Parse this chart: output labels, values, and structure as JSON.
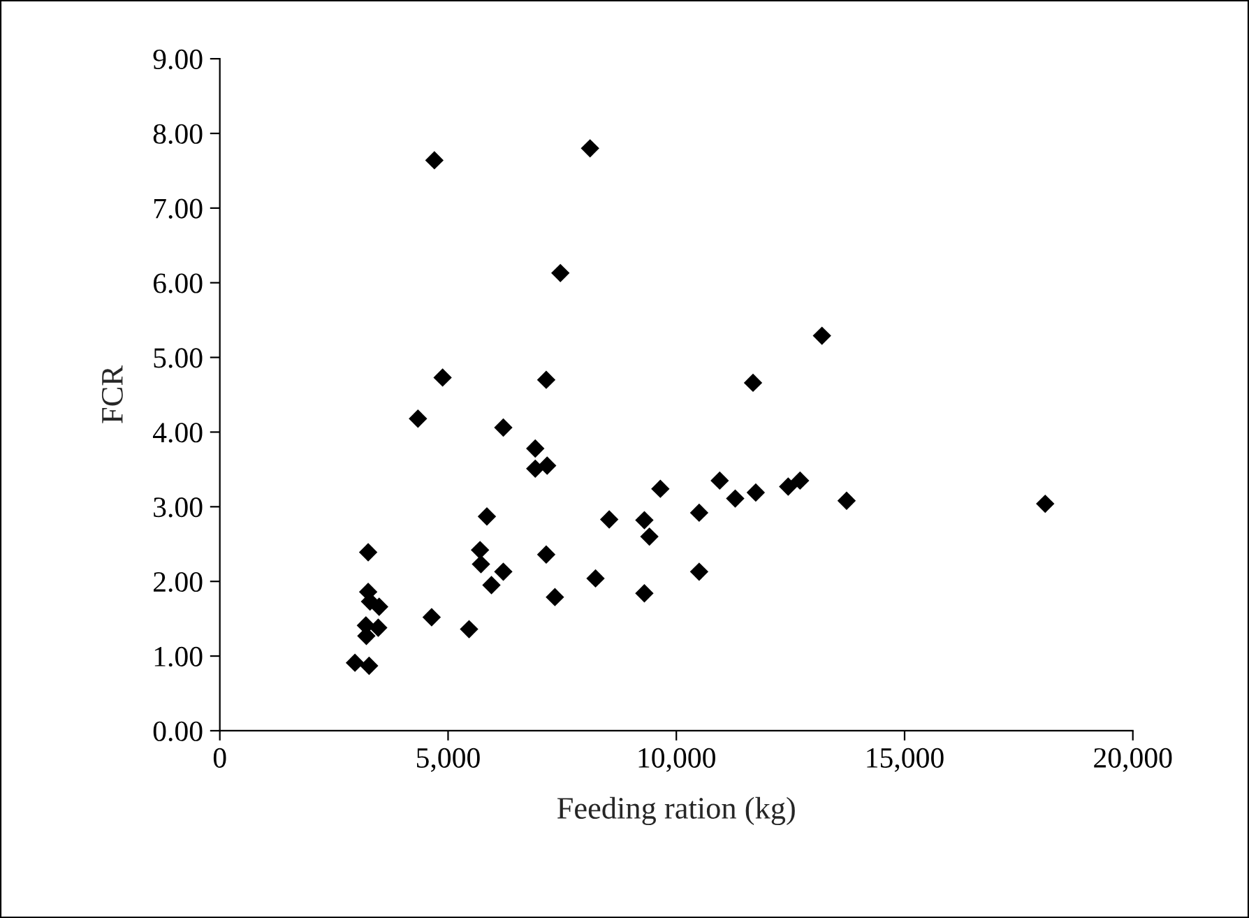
{
  "chart_data": {
    "type": "scatter",
    "xlabel": "Feeding ration (kg)",
    "ylabel": "FCR",
    "x": [
      2960,
      3270,
      3250,
      3250,
      3290,
      3490,
      3200,
      3240,
      3470,
      3210,
      4640,
      5460,
      4340,
      4880,
      7150,
      6210,
      6910,
      6910,
      7170,
      5850,
      8530,
      5700,
      5720,
      6210,
      5950,
      7150,
      7340,
      8230,
      8110,
      7460,
      13190,
      11680,
      9650,
      10950,
      11290,
      11740,
      12450,
      12710,
      13730,
      9300,
      9410,
      10500,
      10500,
      9300,
      18080,
      4700
    ],
    "values": [
      0.91,
      0.87,
      2.39,
      1.86,
      1.73,
      1.66,
      1.41,
      null,
      1.38,
      1.27,
      1.52,
      1.36,
      4.18,
      4.73,
      4.7,
      4.06,
      3.78,
      3.51,
      3.55,
      2.87,
      2.83,
      2.42,
      2.23,
      2.13,
      1.95,
      2.36,
      1.79,
      2.04,
      7.8,
      6.13,
      5.29,
      4.66,
      3.24,
      3.35,
      3.11,
      3.19,
      3.27,
      3.35,
      3.08,
      2.82,
      2.6,
      2.92,
      2.13,
      1.84,
      3.04,
      7.64
    ],
    "color": "#000000",
    "marker": "diamond",
    "xlim": [
      0,
      20000
    ],
    "xticks": [
      0,
      {
        "value": 5000,
        "label": "5,000"
      },
      {
        "value": 10000,
        "label": "10,000"
      },
      {
        "value": 15000,
        "label": "15,000"
      },
      {
        "value": 20000,
        "label": "20,000"
      }
    ],
    "ylim": [
      0,
      9
    ],
    "yticks": [
      {
        "value": 0,
        "label": "0.00"
      },
      {
        "value": 1,
        "label": "1.00"
      },
      {
        "value": 2,
        "label": "2.00"
      },
      {
        "value": 3,
        "label": "3.00"
      },
      {
        "value": 4,
        "label": "4.00"
      },
      {
        "value": 5,
        "label": "5.00"
      },
      {
        "value": 6,
        "label": "6.00"
      },
      {
        "value": 7,
        "label": "7.00"
      },
      {
        "value": 8,
        "label": "8.00"
      },
      {
        "value": 9,
        "label": "9.00"
      }
    ],
    "grid": false,
    "legend": false
  }
}
